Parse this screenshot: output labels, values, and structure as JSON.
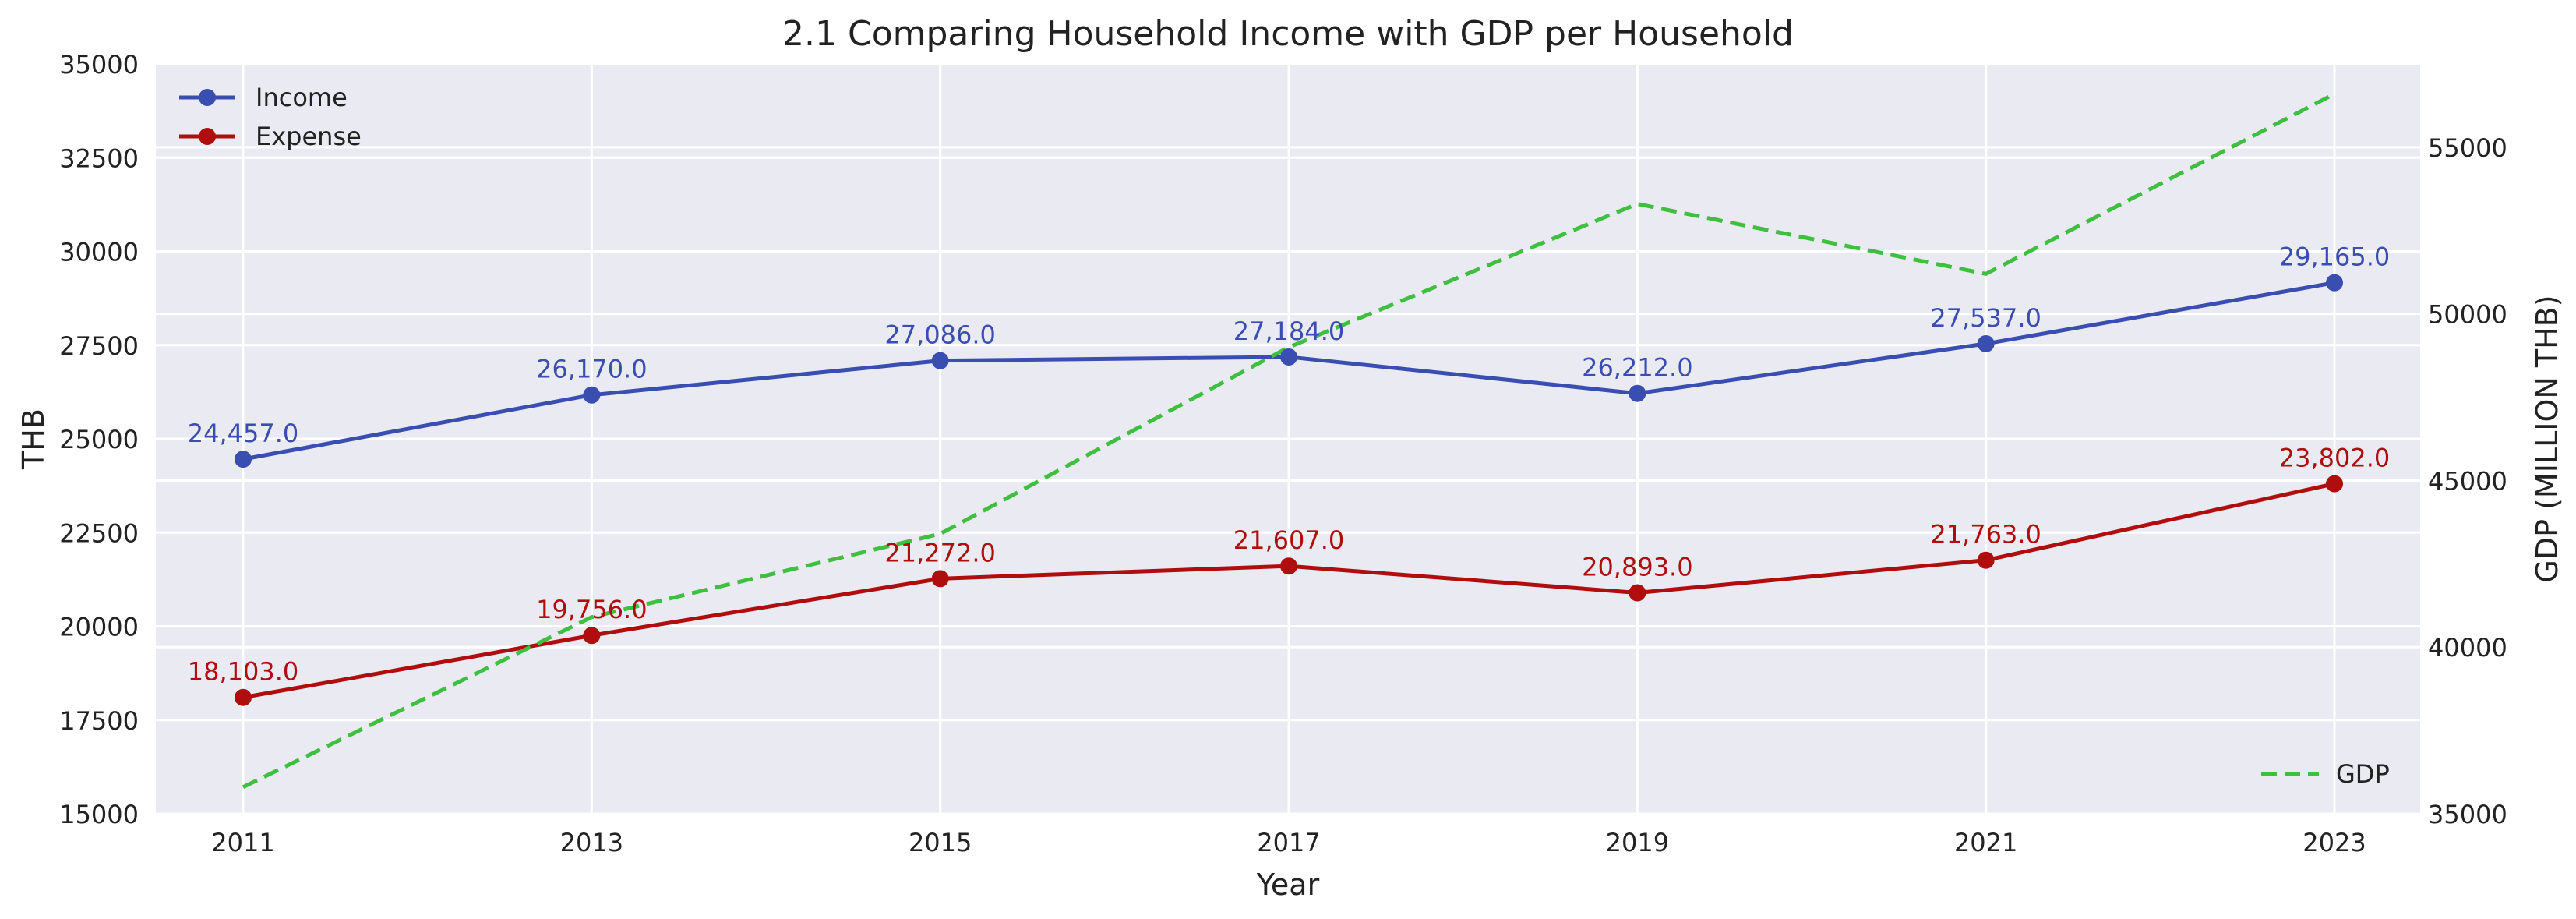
{
  "chart_data": {
    "type": "line",
    "title": "2.1 Comparing Household Income with GDP per Household",
    "xlabel": "Year",
    "ylabel": "THB",
    "ylabel_right": "GDP (MILLION THB)",
    "x": [
      "2011",
      "2013",
      "2015",
      "2017",
      "2019",
      "2021",
      "2023"
    ],
    "ylim": [
      15000,
      35000
    ],
    "ylim_right": [
      35000,
      57500
    ],
    "yticks": [
      "15000",
      "17500",
      "20000",
      "22500",
      "25000",
      "27500",
      "30000",
      "32500",
      "35000"
    ],
    "yticks_right": [
      "35000",
      "40000",
      "45000",
      "50000",
      "55000"
    ],
    "grid": true,
    "legend_left": "top-left",
    "legend_right": "bottom-right",
    "series": [
      {
        "name": "Income",
        "axis": "left",
        "color": "#3a4db0",
        "style": "solid-marker",
        "values": [
          24457,
          26170,
          27086,
          27184,
          26212,
          27537,
          29165
        ],
        "labels": [
          "24,457.0",
          "26,170.0",
          "27,086.0",
          "27,184.0",
          "26,212.0",
          "27,537.0",
          "29,165.0"
        ]
      },
      {
        "name": "Expense",
        "axis": "left",
        "color": "#b00e0e",
        "style": "solid-marker",
        "values": [
          18103,
          19756,
          21272,
          21607,
          20893,
          21763,
          23802
        ],
        "labels": [
          "18,103.0",
          "19,756.0",
          "21,272.0",
          "21,607.0",
          "20,893.0",
          "21,763.0",
          "23,802.0"
        ]
      },
      {
        "name": "GDP",
        "axis": "right",
        "color": "#3fbf3f",
        "style": "dashed",
        "values": [
          35800,
          40900,
          43400,
          49000,
          53300,
          51200,
          56600
        ]
      }
    ]
  }
}
